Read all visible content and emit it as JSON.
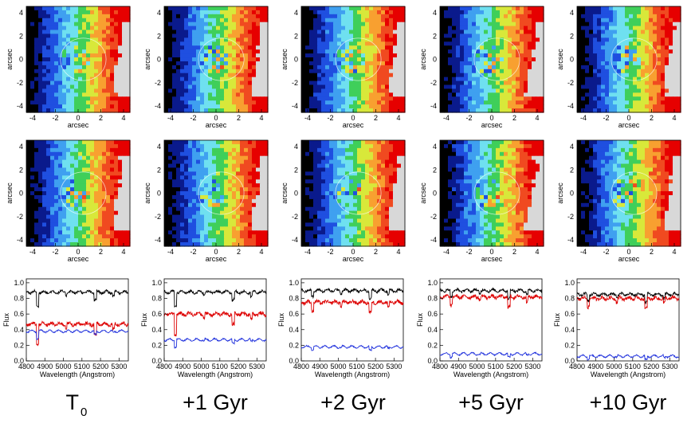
{
  "figure": {
    "map_axes": {
      "xlabel": "arcsec",
      "ylabel": "arcsec",
      "x_ticks": [
        "-4",
        "-2",
        "0",
        "2",
        "4"
      ],
      "y_ticks": [
        "4",
        "2",
        "0",
        "-2",
        "-4"
      ]
    },
    "spectrum_axes": {
      "xlabel": "Wavelength (Angstrom)",
      "ylabel": "Flux",
      "x_ticks": [
        "4800",
        "4900",
        "5000",
        "5100",
        "5200",
        "5300"
      ],
      "y_ticks": [
        "1.0",
        "0.8",
        "0.6",
        "0.4",
        "0.2",
        "0.0"
      ]
    },
    "columns": [
      {
        "label_main": "T",
        "label_sub": "0"
      },
      {
        "label_main": "+1 Gyr",
        "label_sub": ""
      },
      {
        "label_main": "+2 Gyr",
        "label_sub": ""
      },
      {
        "label_main": "+5 Gyr",
        "label_sub": ""
      },
      {
        "label_main": "+10 Gyr",
        "label_sub": ""
      }
    ]
  },
  "chart_data": [
    {
      "type": "line",
      "panel": "spectrum-T0",
      "xlabel": "Wavelength (Angstrom)",
      "ylabel": "Flux",
      "xlim": [
        4800,
        5350
      ],
      "ylim": [
        0,
        1.05
      ],
      "series": [
        {
          "color": "#000000",
          "values_level": 0.88
        },
        {
          "color": "#dd0000",
          "values_level": 0.47
        },
        {
          "color": "#2233dd",
          "values_level": 0.38
        }
      ]
    },
    {
      "type": "line",
      "panel": "spectrum-1Gyr",
      "xlabel": "Wavelength (Angstrom)",
      "ylabel": "Flux",
      "xlim": [
        4800,
        5350
      ],
      "ylim": [
        0,
        1.05
      ],
      "series": [
        {
          "color": "#000000",
          "values_level": 0.88
        },
        {
          "color": "#dd0000",
          "values_level": 0.6
        },
        {
          "color": "#2233dd",
          "values_level": 0.27
        }
      ]
    },
    {
      "type": "line",
      "panel": "spectrum-2Gyr",
      "xlabel": "Wavelength (Angstrom)",
      "ylabel": "Flux",
      "xlim": [
        4800,
        5350
      ],
      "ylim": [
        0,
        1.05
      ],
      "series": [
        {
          "color": "#000000",
          "values_level": 0.9
        },
        {
          "color": "#dd0000",
          "values_level": 0.75
        },
        {
          "color": "#2233dd",
          "values_level": 0.18
        }
      ]
    },
    {
      "type": "line",
      "panel": "spectrum-5Gyr",
      "xlabel": "Wavelength (Angstrom)",
      "ylabel": "Flux",
      "xlim": [
        4800,
        5350
      ],
      "ylim": [
        0,
        1.05
      ],
      "series": [
        {
          "color": "#000000",
          "values_level": 0.9
        },
        {
          "color": "#dd0000",
          "values_level": 0.82
        },
        {
          "color": "#2233dd",
          "values_level": 0.09
        }
      ]
    },
    {
      "type": "line",
      "panel": "spectrum-10Gyr",
      "xlabel": "Wavelength (Angstrom)",
      "ylabel": "Flux",
      "xlim": [
        4800,
        5350
      ],
      "ylim": [
        0,
        1.05
      ],
      "series": [
        {
          "color": "#000000",
          "values_level": 0.85
        },
        {
          "color": "#dd0000",
          "values_level": 0.8
        },
        {
          "color": "#2233dd",
          "values_level": 0.06
        }
      ]
    }
  ],
  "colormap": [
    "#000000",
    "#0a1a8c",
    "#1f4fe0",
    "#3fa0f0",
    "#6fe0f0",
    "#3fcf5a",
    "#d8e83a",
    "#f8a030",
    "#f04a20",
    "#e60000",
    "#d8d8d8"
  ]
}
